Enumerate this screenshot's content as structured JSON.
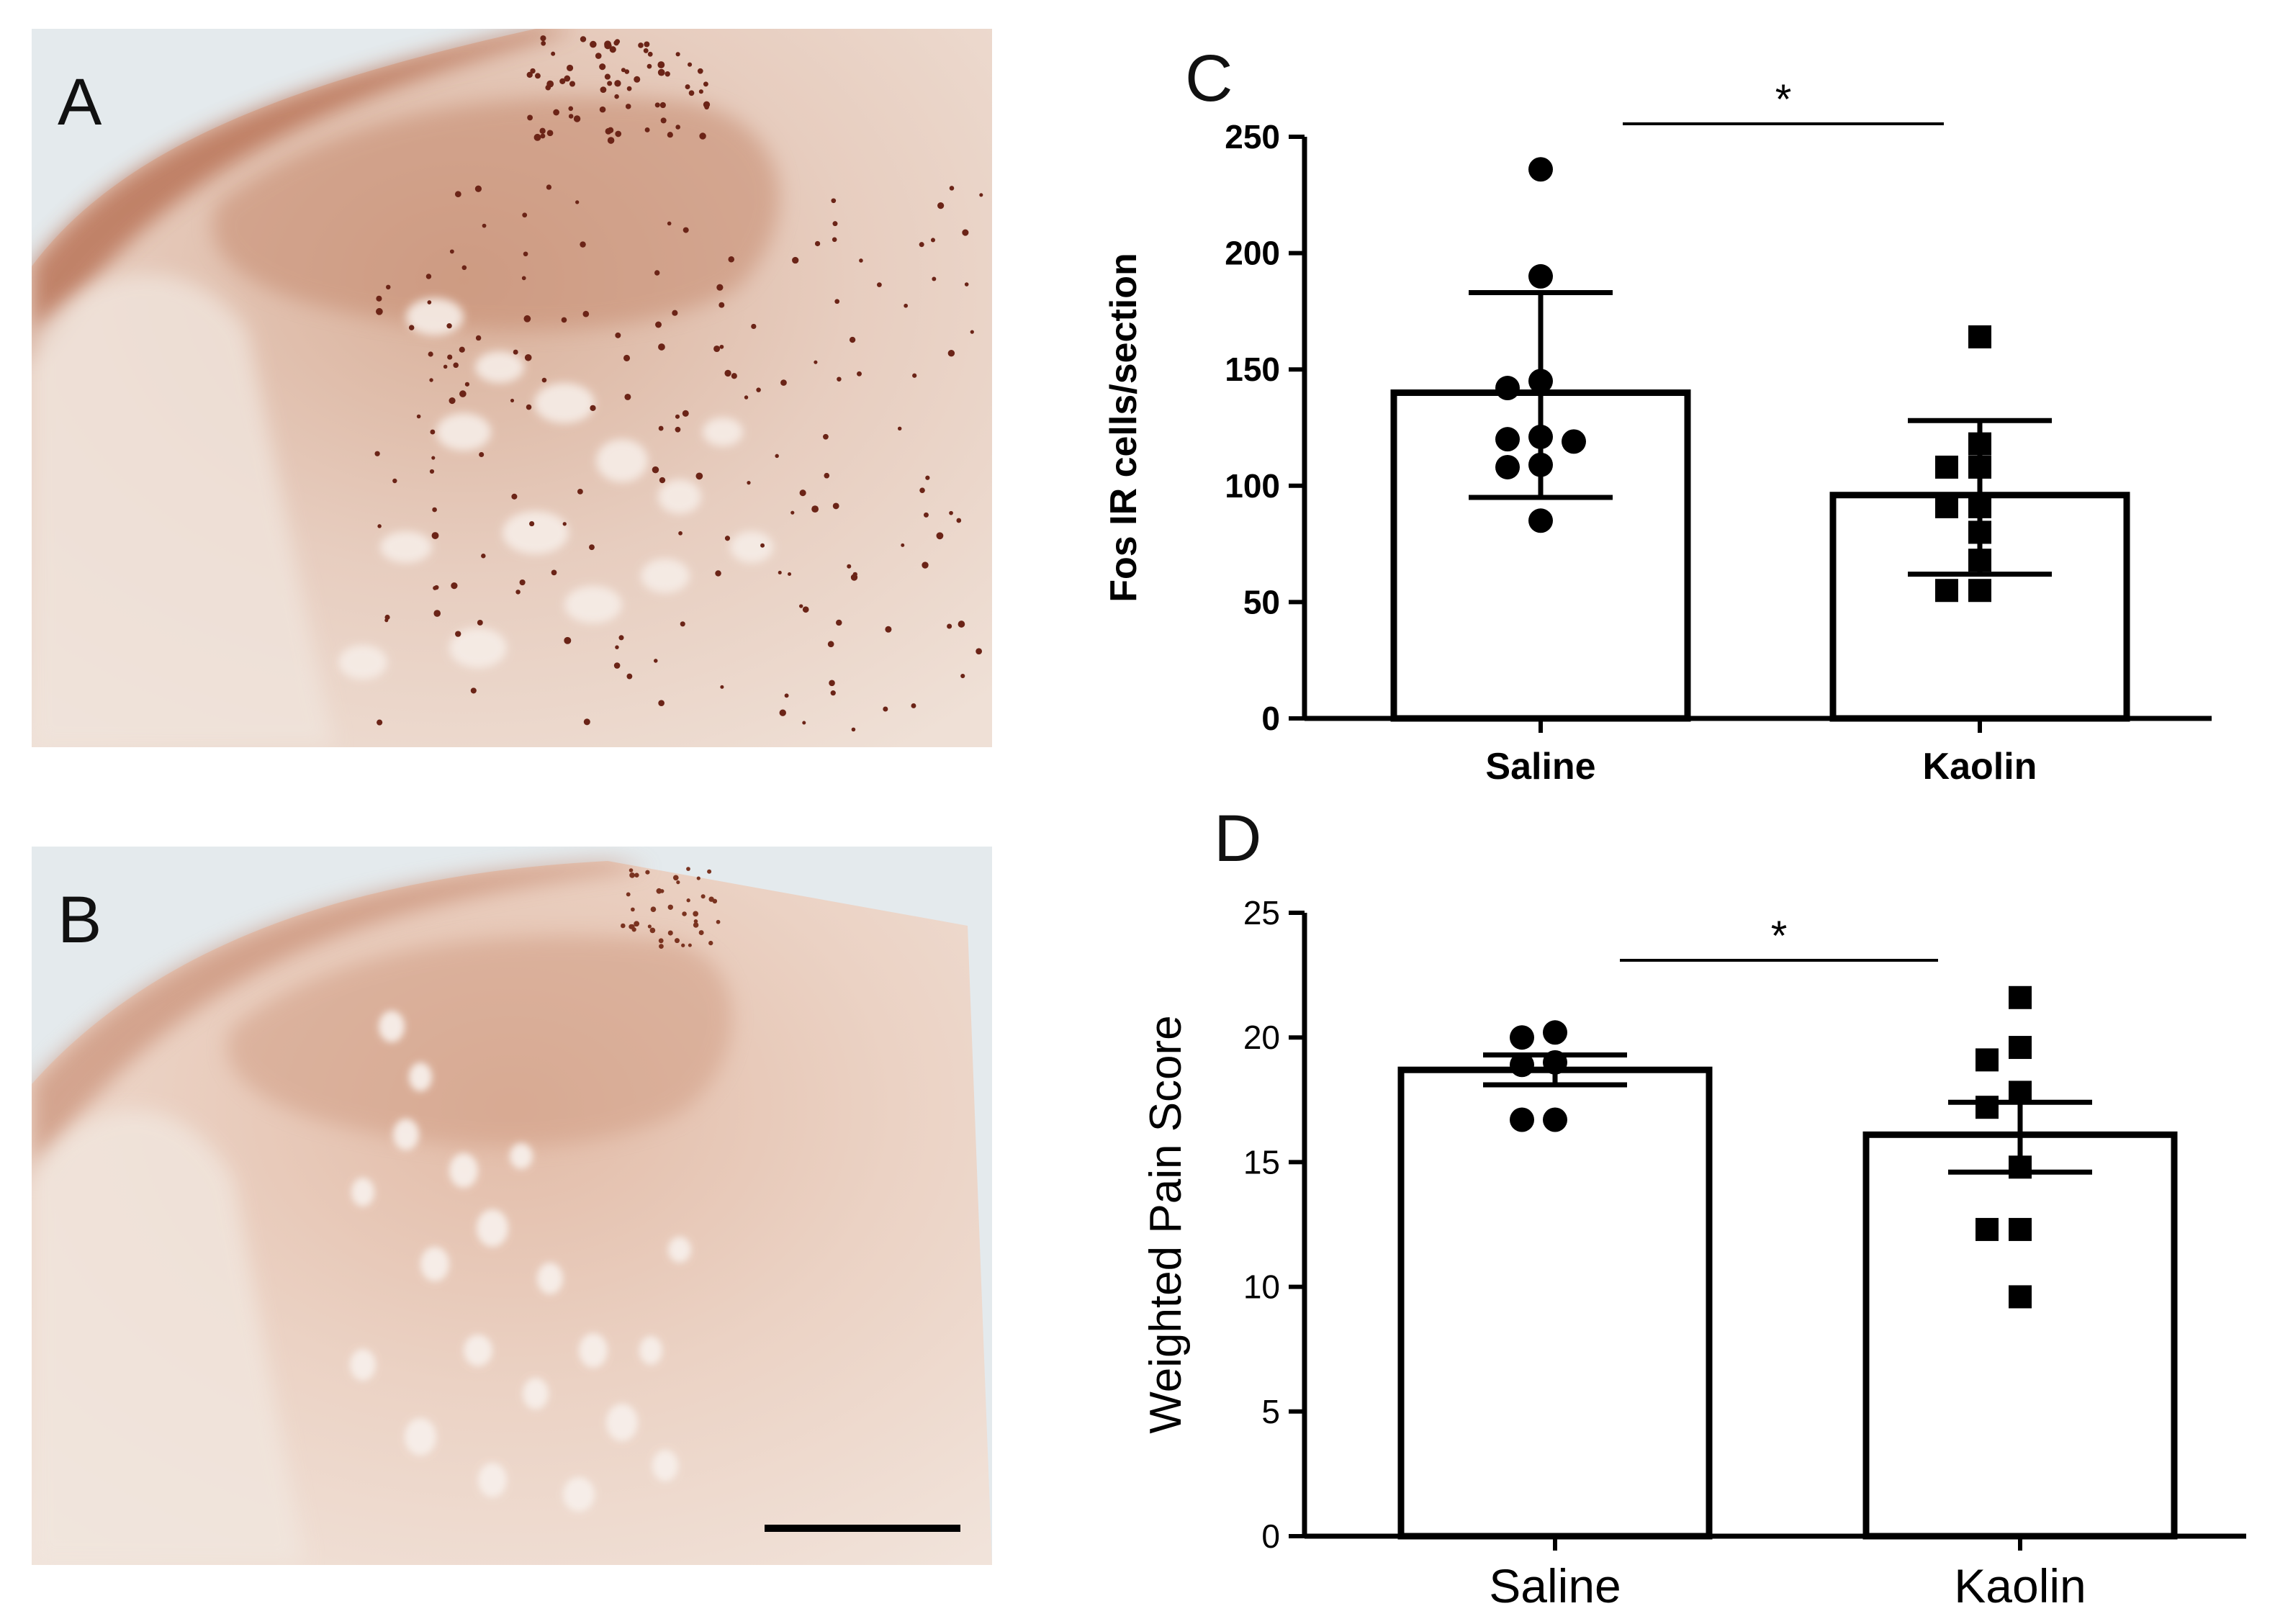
{
  "panels": {
    "a": {
      "label": "A"
    },
    "b": {
      "label": "B"
    },
    "c": {
      "label": "C"
    },
    "d": {
      "label": "D"
    }
  },
  "colors": {
    "tissue_dark": "#b0664a",
    "tissue_light": "#e8c9b8",
    "background": "#e6ebee",
    "fos_nuclei": "#6b2417",
    "bars": "#ffffff",
    "marks": "#000000"
  },
  "chart_data": [
    {
      "panel": "C",
      "type": "bar",
      "categories": [
        "Saline",
        "Kaolin"
      ],
      "values": [
        140,
        96
      ],
      "error_upper": [
        183,
        128
      ],
      "error_lower": [
        95,
        62
      ],
      "points": [
        {
          "category": "Saline",
          "marker": "circle",
          "values": [
            236,
            190,
            145,
            142,
            121,
            120,
            119,
            109,
            108,
            85
          ]
        },
        {
          "category": "Kaolin",
          "marker": "square",
          "values": [
            164,
            118,
            108,
            108,
            91,
            91,
            80,
            68,
            55,
            55
          ]
        }
      ],
      "ylabel": "Fos IR cells/section",
      "ylim": [
        0,
        250
      ],
      "yticks": [
        "0",
        "50",
        "100",
        "150",
        "200",
        "250"
      ],
      "significance": "*"
    },
    {
      "panel": "D",
      "type": "bar",
      "categories": [
        "Saline",
        "Kaolin"
      ],
      "values": [
        18.7,
        16.1
      ],
      "error_upper": [
        19.3,
        17.4
      ],
      "error_lower": [
        18.1,
        14.6
      ],
      "points": [
        {
          "category": "Saline",
          "marker": "circle",
          "values": [
            20.2,
            20.0,
            19.0,
            18.9,
            16.7,
            16.7
          ]
        },
        {
          "category": "Kaolin",
          "marker": "square",
          "values": [
            21.6,
            19.6,
            19.1,
            17.8,
            17.2,
            14.8,
            12.3,
            12.3,
            9.6
          ]
        }
      ],
      "ylabel": "Weighted Pain Score",
      "ylim": [
        0,
        25
      ],
      "yticks": [
        "0",
        "5",
        "10",
        "15",
        "20",
        "25"
      ],
      "significance": "*"
    }
  ]
}
